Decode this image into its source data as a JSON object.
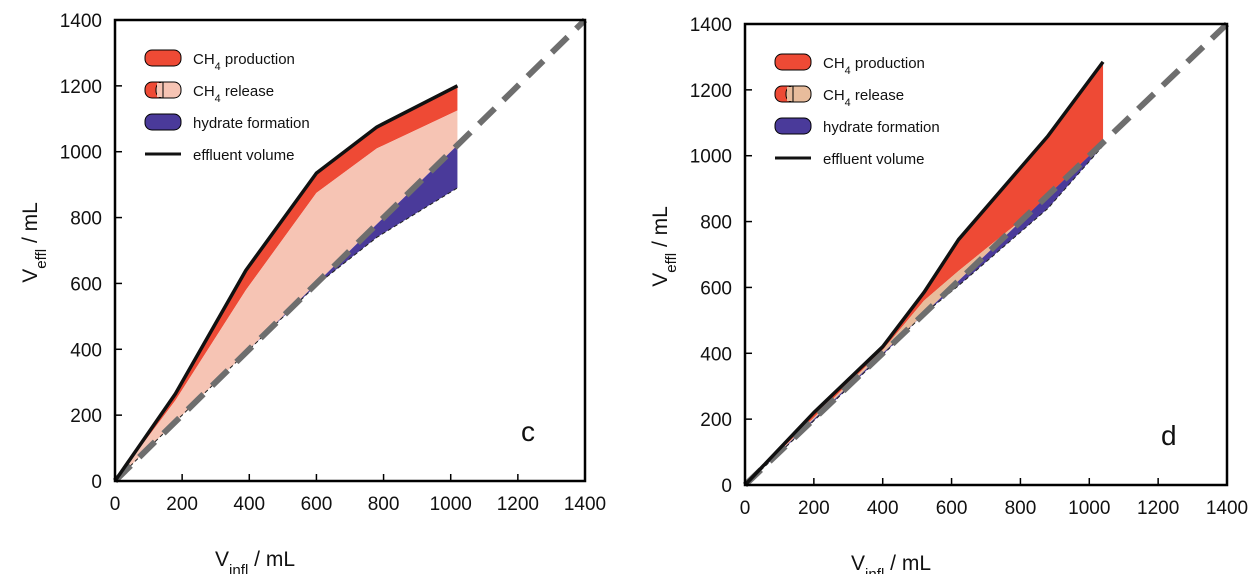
{
  "colors": {
    "production": "#ee4a35",
    "release": "#f6c4b4",
    "release_d": "#e8bc9c",
    "hydrate": "#4a3a9a",
    "effluent": "#111111",
    "reference": "#6e6e6e"
  },
  "chart_data": [
    {
      "type": "area",
      "panel_label": "c",
      "xlabel_main": "V",
      "xlabel_sub": "infl",
      "xlabel_unit": " / mL",
      "ylabel_main": "V",
      "ylabel_sub": "effl",
      "ylabel_unit": " / mL",
      "xlim": [
        0,
        1400
      ],
      "ylim": [
        0,
        1400
      ],
      "x_ticks": [
        "0",
        "200",
        "400",
        "600",
        "800",
        "1000",
        "1200",
        "1400"
      ],
      "y_ticks": [
        "0",
        "200",
        "400",
        "600",
        "800",
        "1000",
        "1200",
        "1400"
      ],
      "legend_position": "top-left",
      "legend": [
        {
          "key": "production",
          "text": "CH",
          "sub": "4",
          "rest": " production"
        },
        {
          "key": "release",
          "text": "CH",
          "sub": "4",
          "rest": " release"
        },
        {
          "key": "hydrate",
          "text": "hydrate formation",
          "sub": "",
          "rest": ""
        },
        {
          "key": "effluent",
          "text": "effluent volume",
          "sub": "",
          "rest": ""
        }
      ],
      "x": [
        0,
        180,
        390,
        600,
        780,
        1020
      ],
      "effluent": [
        0,
        265,
        640,
        935,
        1075,
        1200
      ],
      "release_top": [
        0,
        245,
        580,
        875,
        1010,
        1125
      ],
      "hydrate_bottom": [
        0,
        180,
        390,
        595,
        740,
        890
      ],
      "reference_line": [
        [
          0,
          0
        ],
        [
          1400,
          1400
        ]
      ]
    },
    {
      "type": "area",
      "panel_label": "d",
      "xlabel_main": "V",
      "xlabel_sub": "infl",
      "xlabel_unit": " / mL",
      "ylabel_main": "V",
      "ylabel_sub": "effl",
      "ylabel_unit": " / mL",
      "xlim": [
        0,
        1400
      ],
      "ylim": [
        0,
        1400
      ],
      "x_ticks": [
        "0",
        "200",
        "400",
        "600",
        "800",
        "1000",
        "1200",
        "1400"
      ],
      "y_ticks": [
        "0",
        "200",
        "400",
        "600",
        "800",
        "1000",
        "1200",
        "1400"
      ],
      "legend_position": "top-left",
      "legend": [
        {
          "key": "production",
          "text": "CH",
          "sub": "4",
          "rest": " production"
        },
        {
          "key": "release",
          "text": "CH",
          "sub": "4",
          "rest": " release"
        },
        {
          "key": "hydrate",
          "text": "hydrate formation",
          "sub": "",
          "rest": ""
        },
        {
          "key": "effluent",
          "text": "effluent volume",
          "sub": "",
          "rest": ""
        }
      ],
      "x": [
        0,
        200,
        400,
        520,
        620,
        880,
        1040
      ],
      "effluent": [
        0,
        220,
        420,
        585,
        745,
        1060,
        1285
      ],
      "release_top": [
        0,
        205,
        410,
        560,
        650,
        870,
        1040
      ],
      "hydrate_bottom": [
        0,
        195,
        395,
        520,
        605,
        840,
        1030
      ],
      "reference_line": [
        [
          0,
          0
        ],
        [
          1400,
          1400
        ]
      ]
    }
  ]
}
